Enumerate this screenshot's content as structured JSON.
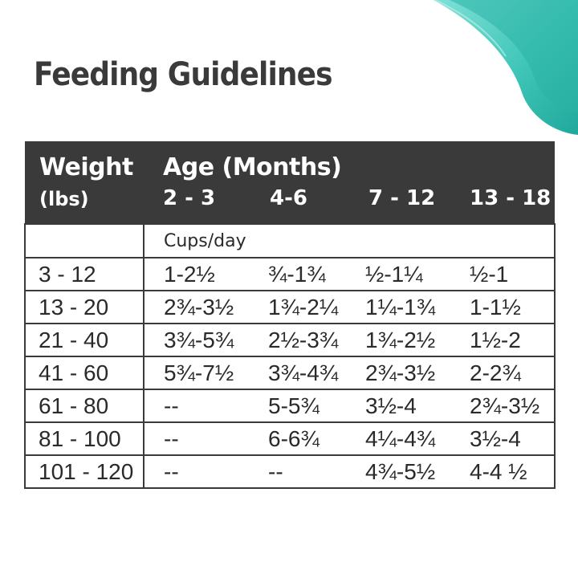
{
  "title": "Feeding Guidelines",
  "colors": {
    "header_bg": "#3a3a3a",
    "header_text": "#ffffff",
    "accent_teal": "#3fc6b8",
    "accent_teal_dark": "#1fa89c"
  },
  "table": {
    "weight_label": "Weight",
    "weight_unit": "(lbs)",
    "age_label": "Age (Months)",
    "age_ranges": [
      "2 - 3",
      "4-6",
      "7 - 12",
      "13 - 18"
    ],
    "unit_label": "Cups/day",
    "rows": [
      {
        "weight": "3 - 12",
        "values": [
          "1-2½",
          "¾-1¾",
          "½-1¼",
          "½-1"
        ]
      },
      {
        "weight": "13 - 20",
        "values": [
          "2¾-3½",
          "1¾-2¼",
          "1¼-1¾",
          "1-1½"
        ]
      },
      {
        "weight": "21 - 40",
        "values": [
          "3¾-5¾",
          "2½-3¾",
          "1¾-2½",
          "1½-2"
        ]
      },
      {
        "weight": "41 - 60",
        "values": [
          "5¾-7½",
          "3¾-4¾",
          "2¾-3½",
          "2-2¾"
        ]
      },
      {
        "weight": "61 - 80",
        "values": [
          "--",
          "5-5¾",
          "3½-4",
          "2¾-3½"
        ]
      },
      {
        "weight": "81 - 100",
        "values": [
          "--",
          "6-6¾",
          "4¼-4¾",
          "3½-4"
        ]
      },
      {
        "weight": "101 - 120",
        "values": [
          "--",
          "--",
          "4¾-5½",
          "4-4 ½"
        ]
      }
    ]
  }
}
